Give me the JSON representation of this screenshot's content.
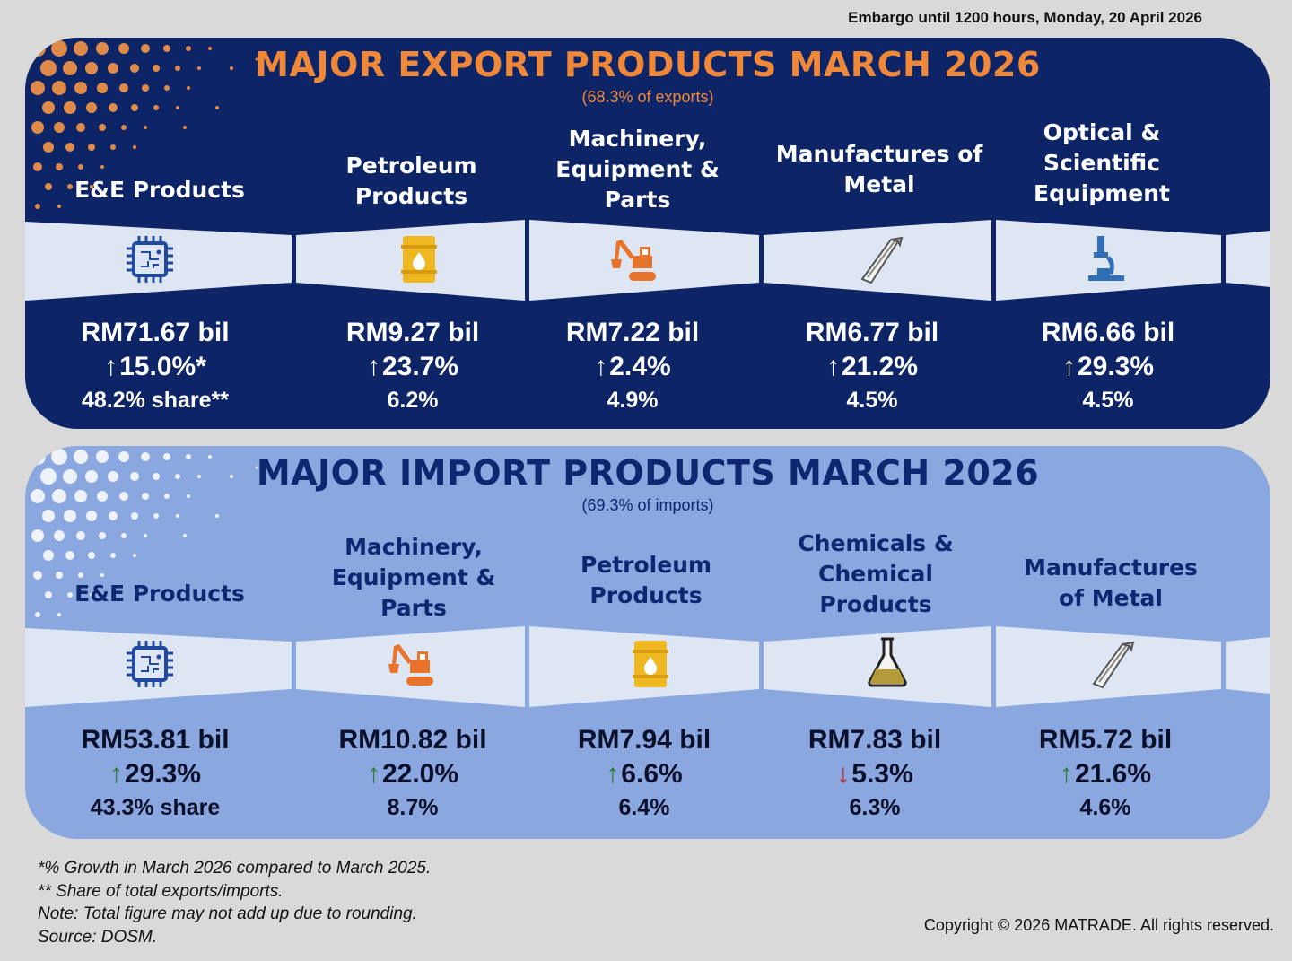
{
  "embargo": "Embargo until 1200 hours, Monday, 20 April 2026",
  "exports": {
    "title": "MAJOR EXPORT PRODUCTS MARCH 2026",
    "subtitle": "(68.3% of exports)",
    "items": [
      {
        "category": "E&E Products",
        "icon": "microchip-icon",
        "value": "RM71.67 bil",
        "direction": "up",
        "growth": "15.0%*",
        "share": "48.2% share**"
      },
      {
        "category": "Petroleum Products",
        "icon": "oil-barrel-icon",
        "value": "RM9.27 bil",
        "direction": "up",
        "growth": "23.7%",
        "share": "6.2%"
      },
      {
        "category": "Machinery, Equipment & Parts",
        "icon": "excavator-icon",
        "value": "RM7.22 bil",
        "direction": "up",
        "growth": "2.4%",
        "share": "4.9%"
      },
      {
        "category": "Manufactures of Metal",
        "icon": "metal-beam-icon",
        "value": "RM6.77 bil",
        "direction": "up",
        "growth": "21.2%",
        "share": "4.5%"
      },
      {
        "category": "Optical & Scientific Equipment",
        "icon": "microscope-icon",
        "value": "RM6.66 bil",
        "direction": "up",
        "growth": "29.3%",
        "share": "4.5%"
      }
    ]
  },
  "imports": {
    "title": "MAJOR IMPORT PRODUCTS MARCH 2026",
    "subtitle": "(69.3% of imports)",
    "items": [
      {
        "category": "E&E Products",
        "icon": "microchip-icon",
        "value": "RM53.81 bil",
        "direction": "up",
        "growth": "29.3%",
        "share": "43.3% share"
      },
      {
        "category": "Machinery, Equipment & Parts",
        "icon": "excavator-icon",
        "value": "RM10.82 bil",
        "direction": "up",
        "growth": "22.0%",
        "share": "8.7%"
      },
      {
        "category": "Petroleum Products",
        "icon": "oil-barrel-icon",
        "value": "RM7.94 bil",
        "direction": "up",
        "growth": "6.6%",
        "share": "6.4%"
      },
      {
        "category": "Chemicals & Chemical Products",
        "icon": "flask-icon",
        "value": "RM7.83 bil",
        "direction": "down",
        "growth": "5.3%",
        "share": "6.3%"
      },
      {
        "category": "Manufactures of Metal",
        "icon": "metal-beam-icon",
        "value": "RM5.72 bil",
        "direction": "up",
        "growth": "21.6%",
        "share": "4.6%"
      }
    ]
  },
  "arrows": {
    "up": "↑",
    "down": "↓"
  },
  "colors": {
    "export_panel": "#0d2566",
    "import_panel": "#8ba7e0",
    "export_title": "#f0883a",
    "import_title": "#0f2670",
    "icon_band": "#dfe6f3",
    "growth_up": "#2e7d32",
    "growth_down": "#c62828"
  },
  "footnotes": [
    "*% Growth in March 2026 compared to March 2025.",
    "** Share of total exports/imports.",
    "Note: Total figure may not add up due to rounding.",
    "Source: DOSM."
  ],
  "copyright": "Copyright © 2026 MATRADE. All rights reserved."
}
